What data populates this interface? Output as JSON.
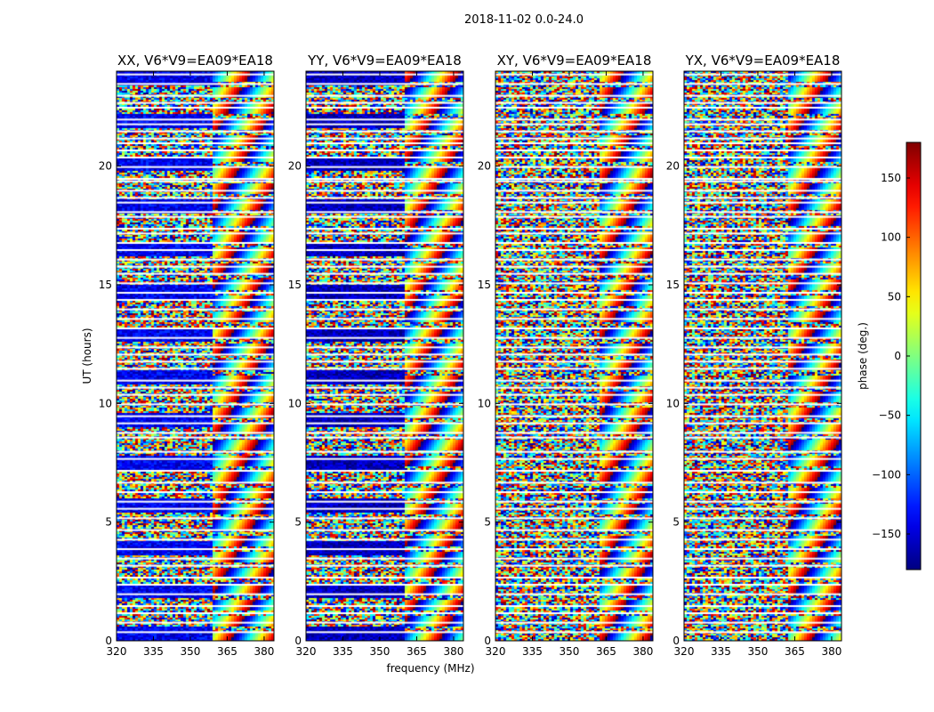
{
  "chart_data": {
    "type": "heatmap",
    "suptitle": "2018-11-02 0.0-24.0",
    "xlabel": "frequency (MHz)",
    "ylabel": "UT (hours)",
    "xlim": [
      320,
      384
    ],
    "ylim": [
      0,
      24
    ],
    "xticks": [
      320,
      335,
      350,
      365,
      380
    ],
    "yticks": [
      0,
      5,
      10,
      15,
      20
    ],
    "colormap": "jet",
    "colorbar": {
      "label": "phase (deg.)",
      "range": [
        -180,
        180
      ],
      "ticks": [
        -150,
        -100,
        -50,
        0,
        50,
        100,
        150
      ],
      "tick_labels": [
        "−150",
        "−100",
        "−50",
        "0",
        "50",
        "100",
        "150"
      ]
    },
    "panels": [
      {
        "title": "XX, V6*V9=EA09*EA18",
        "product": "XX",
        "coherent_phase_deg": -140,
        "fringe_start_mhz": 358
      },
      {
        "title": "YY, V6*V9=EA09*EA18",
        "product": "YY",
        "coherent_phase_deg": -160,
        "fringe_start_mhz": 360
      },
      {
        "title": "XY, V6*V9=EA09*EA18",
        "product": "XY",
        "coherent_phase_deg": null,
        "fringe_start_mhz": 362
      },
      {
        "title": "YX, V6*V9=EA09*EA18",
        "product": "YX",
        "coherent_phase_deg": null,
        "fringe_start_mhz": 362
      }
    ],
    "flagged_ut_hours": [
      0.1,
      0.5,
      1.0,
      1.3,
      1.5,
      2.0,
      2.2,
      2.5,
      2.8,
      3.0,
      3.3,
      3.6,
      4.0,
      4.5,
      4.6,
      5.0,
      5.3,
      5.5,
      5.9,
      6.1,
      6.6,
      6.8,
      7.2,
      7.5,
      7.9,
      8.2,
      8.5,
      8.9,
      9.3,
      9.6,
      10.0,
      10.4,
      10.8,
      11.2,
      11.6,
      11.9,
      12.2,
      12.5,
      13.0,
      13.3,
      13.6,
      14.0,
      14.5,
      14.8,
      15.2,
      15.4,
      16.0,
      16.3,
      16.8,
      17.3,
      17.7,
      18.1,
      18.4,
      18.8,
      19.3,
      19.7,
      20.1,
      20.5,
      20.8,
      21.3,
      21.6,
      22.0,
      22.5,
      22.8,
      23.2,
      23.6
    ]
  }
}
